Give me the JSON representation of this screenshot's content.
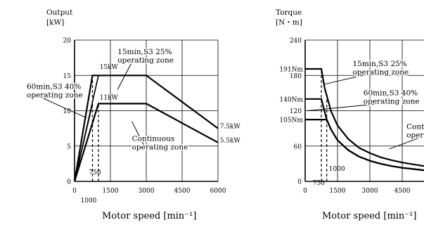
{
  "chart_data": [
    {
      "type": "line",
      "title": "",
      "ylabel": "Output",
      "yunit": "[kW]",
      "xlabel": "Motor speed [min⁻¹]",
      "xlim": [
        0,
        6000
      ],
      "ylim": [
        0,
        20
      ],
      "grid": true,
      "xticks": [
        {
          "value": 0,
          "label": "0"
        },
        {
          "value": 1500,
          "label": "1500"
        },
        {
          "value": 3000,
          "label": "3000"
        },
        {
          "value": 4500,
          "label": "4500"
        },
        {
          "value": 6000,
          "label": "6000"
        }
      ],
      "yticks": [
        {
          "value": 0,
          "label": "0"
        },
        {
          "value": 5,
          "label": "5"
        },
        {
          "value": 10,
          "label": "10"
        },
        {
          "value": 15,
          "label": "15"
        },
        {
          "value": 20,
          "label": "20"
        }
      ],
      "series": [
        {
          "x": [
            0,
            750,
            3000,
            6000
          ],
          "y": [
            0,
            15,
            15,
            7.5
          ]
        },
        {
          "x": [
            0,
            1000,
            3000,
            6000
          ],
          "y": [
            0,
            11,
            11,
            5.5
          ]
        },
        {
          "x": [
            0,
            750
          ],
          "y": [
            0,
            11
          ]
        },
        {
          "x": [
            0,
            1000
          ],
          "y": [
            0,
            15
          ]
        }
      ],
      "dashed": [
        {
          "x": [
            750,
            750
          ],
          "y": [
            0,
            15
          ]
        },
        {
          "x": [
            1000,
            1000
          ],
          "y": [
            0,
            11
          ]
        }
      ],
      "labels": [
        {
          "text": "15kW",
          "x": 1050,
          "y": 15.9
        },
        {
          "text": "11kW",
          "x": 1050,
          "y": 11.6
        },
        {
          "text": "7.5kW",
          "x": 6080,
          "y": 7.5
        },
        {
          "text": "5.5kW",
          "x": 6080,
          "y": 5.5
        },
        {
          "text": "750",
          "x": 600,
          "y": 1.0
        },
        {
          "text": "1000",
          "x": 250,
          "y": -3.0
        }
      ],
      "annotations": [
        {
          "lines": [
            "15min,S3 25%",
            "operating zone"
          ],
          "x": 1800,
          "y": 18.0,
          "arrow_to": [
            1800,
            13.0
          ]
        },
        {
          "lines": [
            "60min,S3 40%",
            "operating zone"
          ],
          "x": -2000,
          "y": 13.1,
          "arrow_to": [
            500,
            9.0
          ]
        },
        {
          "lines": [
            "Continuous",
            "operating zone"
          ],
          "x": 2400,
          "y": 5.7,
          "arrow_to": [
            2400,
            8.5
          ]
        }
      ]
    },
    {
      "type": "line",
      "title": "",
      "ylabel": "Torque",
      "yunit": "[N・m]",
      "xlabel": "Motor speed [min⁻¹]",
      "xlim": [
        0,
        6000
      ],
      "ylim": [
        0,
        240
      ],
      "grid": true,
      "xticks": [
        {
          "value": 0,
          "label": "0"
        },
        {
          "value": 1500,
          "label": "1500"
        },
        {
          "value": 3000,
          "label": "3000"
        },
        {
          "value": 4500,
          "label": "4500"
        }
      ],
      "yticks": [
        {
          "value": 0,
          "label": "0"
        },
        {
          "value": 60,
          "label": "60"
        },
        {
          "value": 120,
          "label": "120"
        },
        {
          "value": 180,
          "label": "180"
        },
        {
          "value": 240,
          "label": "240"
        }
      ],
      "yticks_extra": [
        {
          "value": 191,
          "label": "191Nm"
        },
        {
          "value": 140,
          "label": "140Nm"
        },
        {
          "value": 105,
          "label": "105Nm"
        }
      ],
      "series": [
        {
          "x": [
            0,
            750,
            900,
            1200,
            1500,
            2000,
            2500,
            3000,
            3500,
            4000,
            4500,
            5000,
            5500,
            6000
          ],
          "y": [
            191,
            191,
            159,
            119,
            95,
            72,
            57,
            48,
            41,
            36,
            32,
            29,
            26,
            24
          ]
        },
        {
          "x": [
            0,
            750,
            1000,
            1200,
            1500,
            2000,
            2500,
            3000,
            3500,
            4000,
            4500,
            5000,
            5500,
            6000
          ],
          "y": [
            140,
            140,
            105,
            88,
            70,
            53,
            42,
            35,
            30,
            26,
            23,
            21,
            19,
            17
          ]
        },
        {
          "x": [
            0,
            1000,
            1200,
            1500,
            2000,
            2500,
            3000,
            3500,
            4000,
            4500,
            5000,
            5500,
            6000
          ],
          "y": [
            105,
            105,
            88,
            70,
            53,
            42,
            35,
            30,
            26,
            23,
            21,
            19,
            17
          ]
        }
      ],
      "dashed": [
        {
          "x": [
            750,
            750
          ],
          "y": [
            0,
            191
          ]
        },
        {
          "x": [
            1000,
            1000
          ],
          "y": [
            0,
            140
          ]
        }
      ],
      "labels": [
        {
          "text": "750",
          "x": 350,
          "y": -6
        },
        {
          "text": "1000",
          "x": 1100,
          "y": 18
        }
      ],
      "annotations": [
        {
          "lines": [
            "15min,S3 25%",
            "operating zone"
          ],
          "x": 2200,
          "y": 196,
          "arrow_to": [
            900,
            165
          ]
        },
        {
          "lines": [
            "60min,S3 40%",
            "operating zone"
          ],
          "x": 2700,
          "y": 146,
          "arrow_to": [
            100,
            120
          ]
        },
        {
          "lines": [
            "Continuous",
            "operating zone"
          ],
          "x": 4700,
          "y": 89,
          "arrow_to": [
            3900,
            55
          ]
        }
      ]
    }
  ]
}
